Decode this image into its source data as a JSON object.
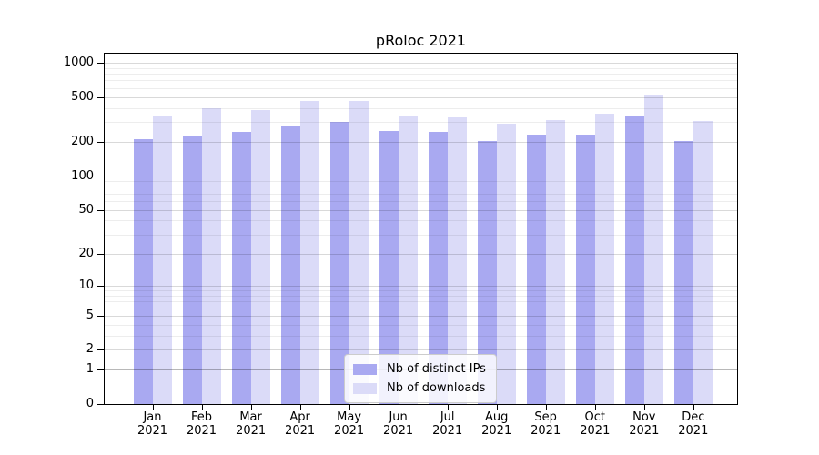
{
  "chart_data": {
    "type": "bar",
    "title": "pRoloc 2021",
    "scale": "log1p",
    "categories": [
      "Jan",
      "Feb",
      "Mar",
      "Apr",
      "May",
      "Jun",
      "Jul",
      "Aug",
      "Sep",
      "Oct",
      "Nov",
      "Dec"
    ],
    "year_label": "2021",
    "series": [
      {
        "name": "Nb of distinct IPs",
        "key": "distinct-ips",
        "color": "#a9a9f1",
        "values": [
          211,
          228,
          246,
          276,
          303,
          252,
          245,
          205,
          233,
          233,
          338,
          205
        ]
      },
      {
        "name": "Nb of downloads",
        "key": "downloads",
        "color": "#dbdbf8",
        "values": [
          336,
          400,
          383,
          463,
          458,
          336,
          330,
          291,
          312,
          353,
          527,
          308
        ]
      }
    ],
    "ylim": [
      0,
      1160
    ],
    "yticks": [
      0,
      1,
      2,
      5,
      10,
      20,
      50,
      100,
      200,
      500,
      1000
    ],
    "minor_gridlines": [
      3,
      4,
      6,
      7,
      8,
      9,
      30,
      40,
      60,
      70,
      80,
      90,
      300,
      400,
      600,
      700,
      800,
      900
    ],
    "grid": "on",
    "legend_position": "lower center"
  },
  "colors": {
    "grid_major": "rgba(0,0,0,0.15)",
    "grid_minor": "rgba(0,0,0,0.07)",
    "grid_unit_line": "rgba(0,0,0,0.28)",
    "spine": "#000000",
    "bar_distinct_ips": "#a9a9f1",
    "bar_downloads": "#dbdbf8",
    "legend_border": "#cccccc"
  }
}
